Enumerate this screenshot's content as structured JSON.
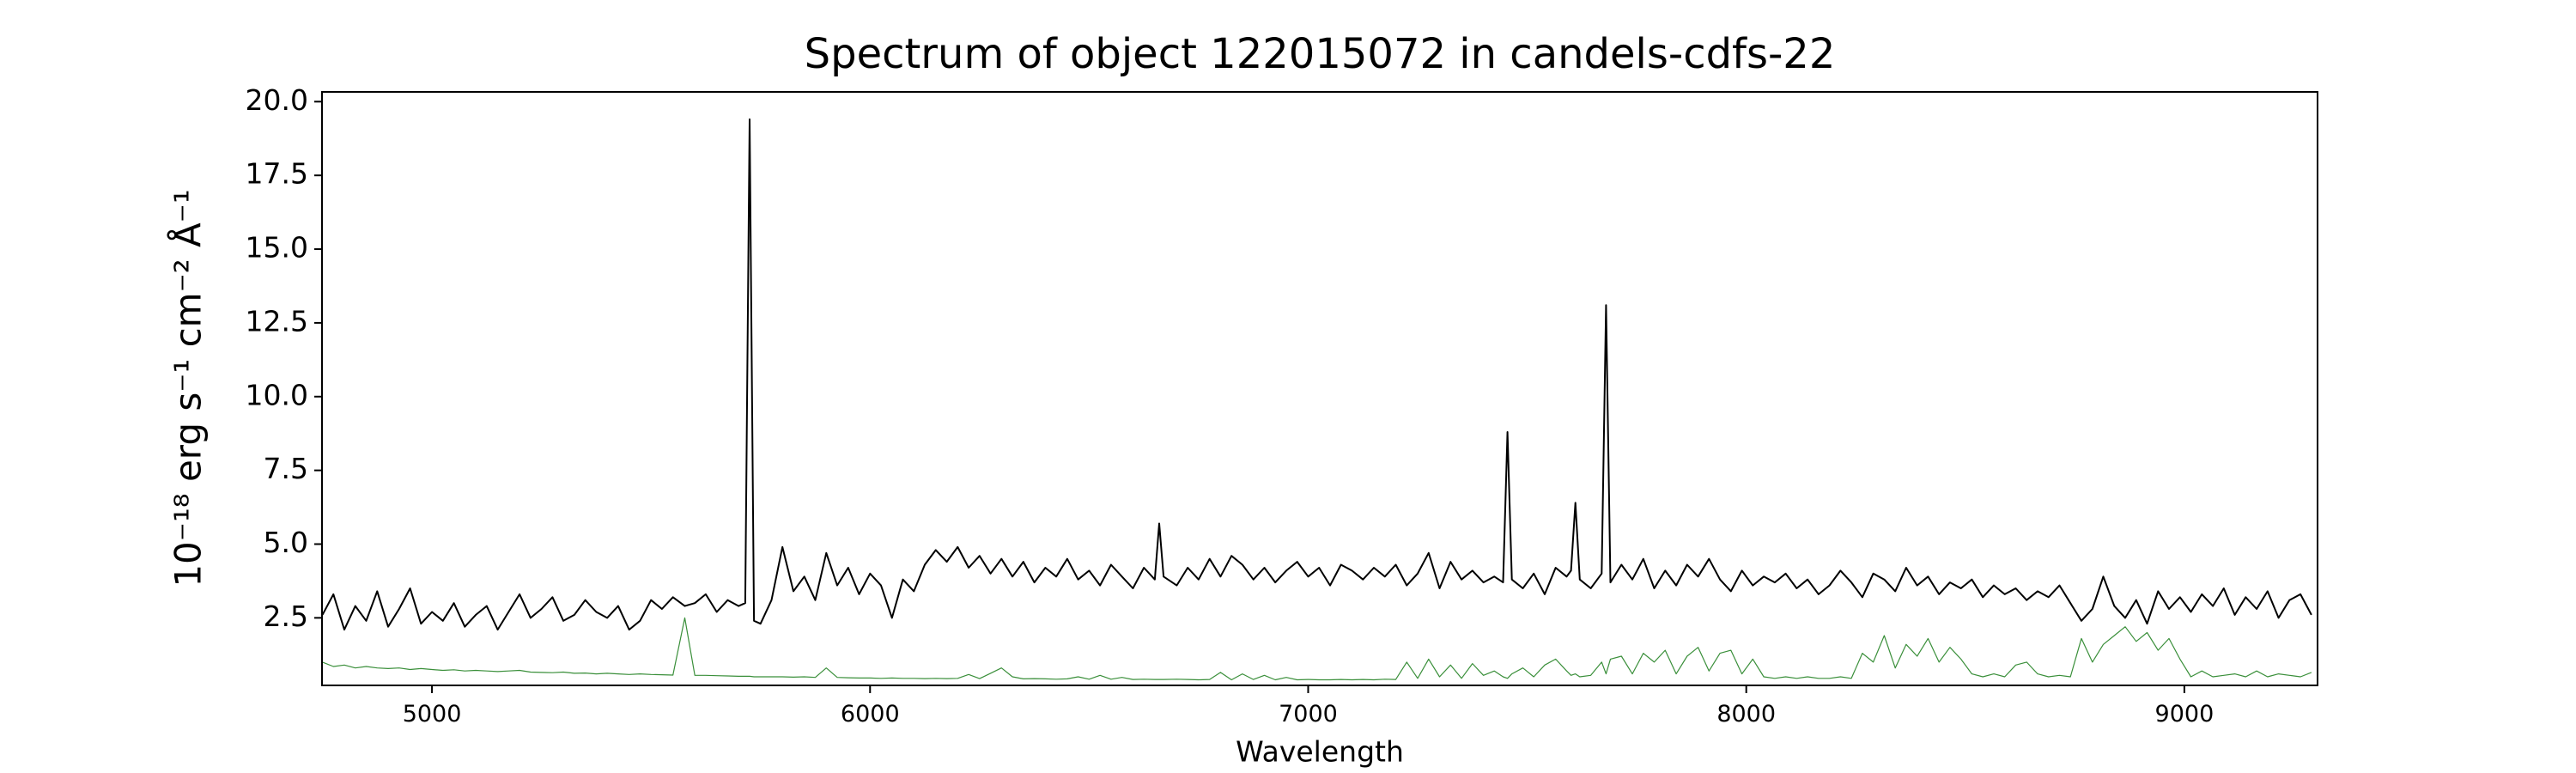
{
  "chart_data": {
    "type": "line",
    "title": "Spectrum of object 122015072 in candels-cdfs-22",
    "x_label": "Wavelength",
    "y_label": "10⁻¹⁸ erg s⁻¹ cm⁻² Å⁻¹",
    "xlim": [
      4749,
      9304
    ],
    "ylim": [
      0.21,
      20.33
    ],
    "xticks": [
      5000,
      6000,
      7000,
      8000,
      9000
    ],
    "yticks": [
      2.5,
      {
        "value": 5,
        "label": "5.0"
      },
      7.5,
      {
        "value": 10,
        "label": "10.0"
      },
      12.5,
      {
        "value": 15,
        "label": "15.0"
      },
      17.5,
      {
        "value": 20,
        "label": "20.0"
      }
    ],
    "grid": false,
    "x": [
      4750,
      4775,
      4800,
      4825,
      4850,
      4875,
      4900,
      4925,
      4950,
      4975,
      5000,
      5025,
      5050,
      5075,
      5100,
      5125,
      5150,
      5175,
      5200,
      5225,
      5250,
      5275,
      5300,
      5325,
      5350,
      5375,
      5400,
      5425,
      5450,
      5475,
      5500,
      5525,
      5550,
      5577,
      5600,
      5625,
      5650,
      5675,
      5700,
      5715,
      5725,
      5735,
      5750,
      5775,
      5800,
      5825,
      5850,
      5875,
      5900,
      5925,
      5950,
      5975,
      6000,
      6025,
      6050,
      6075,
      6100,
      6125,
      6150,
      6175,
      6200,
      6225,
      6250,
      6275,
      6300,
      6325,
      6350,
      6375,
      6400,
      6425,
      6450,
      6475,
      6500,
      6525,
      6550,
      6575,
      6600,
      6625,
      6650,
      6660,
      6670,
      6700,
      6725,
      6750,
      6775,
      6800,
      6825,
      6850,
      6875,
      6900,
      6925,
      6950,
      6975,
      7000,
      7025,
      7050,
      7075,
      7100,
      7125,
      7150,
      7175,
      7200,
      7225,
      7250,
      7275,
      7300,
      7325,
      7350,
      7375,
      7400,
      7425,
      7445,
      7455,
      7465,
      7490,
      7515,
      7540,
      7565,
      7590,
      7600,
      7610,
      7620,
      7645,
      7670,
      7680,
      7690,
      7715,
      7740,
      7765,
      7790,
      7815,
      7840,
      7865,
      7890,
      7915,
      7940,
      7965,
      7990,
      8015,
      8040,
      8065,
      8090,
      8115,
      8140,
      8165,
      8190,
      8215,
      8240,
      8265,
      8290,
      8315,
      8340,
      8365,
      8390,
      8415,
      8440,
      8465,
      8490,
      8515,
      8540,
      8565,
      8590,
      8615,
      8640,
      8665,
      8690,
      8715,
      8740,
      8765,
      8790,
      8815,
      8840,
      8865,
      8890,
      8915,
      8940,
      8965,
      8990,
      9015,
      9040,
      9065,
      9090,
      9115,
      9140,
      9165,
      9190,
      9215,
      9240,
      9265,
      9290
    ],
    "series": [
      {
        "color": "#000000",
        "width": 2,
        "values": [
          2.6,
          3.3,
          2.1,
          2.9,
          2.4,
          3.4,
          2.2,
          2.8,
          3.5,
          2.3,
          2.7,
          2.4,
          3.0,
          2.2,
          2.6,
          2.9,
          2.1,
          2.7,
          3.3,
          2.5,
          2.8,
          3.2,
          2.4,
          2.6,
          3.1,
          2.7,
          2.5,
          2.9,
          2.1,
          2.4,
          3.1,
          2.8,
          3.2,
          2.9,
          3.0,
          3.3,
          2.7,
          3.1,
          2.9,
          3.0,
          19.4,
          2.4,
          2.3,
          3.1,
          4.9,
          3.4,
          3.9,
          3.1,
          4.7,
          3.6,
          4.2,
          3.3,
          4.0,
          3.6,
          2.5,
          3.8,
          3.4,
          4.3,
          4.8,
          4.4,
          4.9,
          4.2,
          4.6,
          4.0,
          4.5,
          3.9,
          4.4,
          3.7,
          4.2,
          3.9,
          4.5,
          3.8,
          4.1,
          3.6,
          4.3,
          3.9,
          3.5,
          4.2,
          3.8,
          5.7,
          3.9,
          3.6,
          4.2,
          3.8,
          4.5,
          3.9,
          4.6,
          4.3,
          3.8,
          4.2,
          3.7,
          4.1,
          4.4,
          3.9,
          4.2,
          3.6,
          4.3,
          4.1,
          3.8,
          4.2,
          3.9,
          4.3,
          3.6,
          4.0,
          4.7,
          3.5,
          4.4,
          3.8,
          4.1,
          3.7,
          3.9,
          3.7,
          8.8,
          3.8,
          3.5,
          4.0,
          3.3,
          4.2,
          3.9,
          4.1,
          6.4,
          3.8,
          3.5,
          4.0,
          13.1,
          3.7,
          4.3,
          3.8,
          4.5,
          3.5,
          4.1,
          3.6,
          4.3,
          3.9,
          4.5,
          3.8,
          3.4,
          4.1,
          3.6,
          3.9,
          3.7,
          4.0,
          3.5,
          3.8,
          3.3,
          3.6,
          4.1,
          3.7,
          3.2,
          4.0,
          3.8,
          3.4,
          4.2,
          3.6,
          3.9,
          3.3,
          3.7,
          3.5,
          3.8,
          3.2,
          3.6,
          3.3,
          3.5,
          3.1,
          3.4,
          3.2,
          3.6,
          3.0,
          2.4,
          2.8,
          3.9,
          2.9,
          2.5,
          3.1,
          2.3,
          3.4,
          2.8,
          3.2,
          2.7,
          3.3,
          2.9,
          3.5,
          2.6,
          3.2,
          2.8,
          3.4,
          2.5,
          3.1,
          3.3,
          2.6
        ]
      },
      {
        "color": "#3a8f3a",
        "width": 1.2,
        "values": [
          1.0,
          0.85,
          0.9,
          0.8,
          0.85,
          0.8,
          0.78,
          0.8,
          0.75,
          0.78,
          0.75,
          0.72,
          0.74,
          0.7,
          0.72,
          0.7,
          0.68,
          0.7,
          0.72,
          0.66,
          0.65,
          0.64,
          0.66,
          0.62,
          0.63,
          0.6,
          0.62,
          0.6,
          0.58,
          0.6,
          0.58,
          0.57,
          0.56,
          2.5,
          0.55,
          0.55,
          0.54,
          0.53,
          0.52,
          0.52,
          0.52,
          0.5,
          0.5,
          0.5,
          0.5,
          0.49,
          0.5,
          0.48,
          0.8,
          0.48,
          0.47,
          0.46,
          0.46,
          0.45,
          0.46,
          0.45,
          0.45,
          0.44,
          0.45,
          0.44,
          0.45,
          0.58,
          0.44,
          0.62,
          0.8,
          0.5,
          0.43,
          0.44,
          0.43,
          0.42,
          0.43,
          0.5,
          0.42,
          0.55,
          0.42,
          0.48,
          0.41,
          0.42,
          0.41,
          0.41,
          0.41,
          0.42,
          0.41,
          0.4,
          0.41,
          0.65,
          0.4,
          0.6,
          0.41,
          0.55,
          0.4,
          0.48,
          0.4,
          0.41,
          0.4,
          0.4,
          0.41,
          0.4,
          0.41,
          0.4,
          0.42,
          0.41,
          1.0,
          0.45,
          1.1,
          0.5,
          0.9,
          0.45,
          0.95,
          0.55,
          0.7,
          0.5,
          0.45,
          0.6,
          0.8,
          0.5,
          0.9,
          1.1,
          0.7,
          0.55,
          0.6,
          0.5,
          0.55,
          1.0,
          0.6,
          1.1,
          1.2,
          0.6,
          1.3,
          1.0,
          1.4,
          0.6,
          1.2,
          1.5,
          0.7,
          1.3,
          1.4,
          0.6,
          1.1,
          0.5,
          0.45,
          0.5,
          0.45,
          0.5,
          0.45,
          0.45,
          0.5,
          0.45,
          1.3,
          1.0,
          1.9,
          0.8,
          1.6,
          1.2,
          1.8,
          1.0,
          1.5,
          1.1,
          0.6,
          0.5,
          0.6,
          0.5,
          0.9,
          1.0,
          0.6,
          0.5,
          0.55,
          0.5,
          1.8,
          1.0,
          1.6,
          1.9,
          2.2,
          1.7,
          2.0,
          1.4,
          1.8,
          1.1,
          0.5,
          0.7,
          0.5,
          0.55,
          0.6,
          0.5,
          0.7,
          0.5,
          0.6,
          0.55,
          0.5,
          0.65
        ]
      }
    ]
  }
}
